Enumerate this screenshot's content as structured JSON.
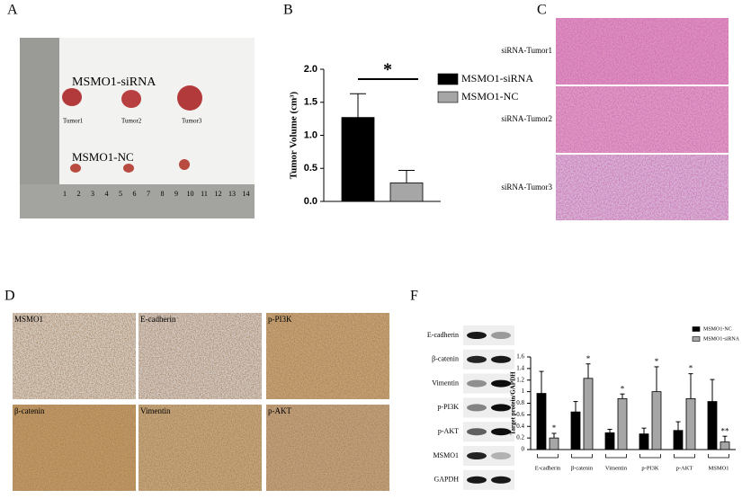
{
  "panels": {
    "labels": [
      "A",
      "B",
      "C",
      "D",
      "F"
    ]
  },
  "photo_a": {
    "group_labels": [
      "MSMO1-siRNA",
      "MSMO1-NC"
    ],
    "tumor_labels": [
      "Tumor1",
      "Tumor2",
      "Tumor3"
    ],
    "ruler": [
      "1",
      "2",
      "3",
      "4",
      "5",
      "6",
      "7",
      "8",
      "9",
      "10",
      "11",
      "12",
      "13",
      "14"
    ]
  },
  "histology_c": {
    "labels": [
      "siRNA-Tumor1",
      "siRNA-Tumor2",
      "siRNA-Tumor3"
    ]
  },
  "ihc_d": {
    "labels": [
      "MSMO1",
      "E-cadherin",
      "p-PI3K",
      "β-catenin",
      "Vimentin",
      "p-AKT"
    ]
  },
  "western_f": {
    "labels": [
      "E-cadherin",
      "β-catenin",
      "Vimentin",
      "p-PI3K",
      "p-AKT",
      "MSMO1",
      "GAPDH"
    ]
  },
  "chart_data": [
    {
      "type": "bar",
      "ylabel": "Tumor Volume (cm³)",
      "categories": [
        null
      ],
      "series": [
        {
          "name": "MSMO1-siRNA",
          "color": "#000000",
          "values": [
            1.27
          ],
          "errors": [
            0.36
          ]
        },
        {
          "name": "MSMO1-NC",
          "color": "#a6a6a6",
          "values": [
            0.28
          ],
          "errors": [
            0.19
          ]
        }
      ],
      "ylim": [
        0,
        2
      ],
      "yticks": [
        {
          "value": 0,
          "label": "0.0"
        },
        0.5,
        {
          "value": 1,
          "label": "1.0"
        },
        1.5,
        {
          "value": 2,
          "label": "2.0"
        }
      ],
      "annotation": "*"
    },
    {
      "type": "bar",
      "ylabel": "Target protein/GAPDH",
      "categories": [
        "E-cadherin",
        "β-catenin",
        "Vimentin",
        "p-PI3K",
        "p-AKT",
        "MSMO1"
      ],
      "series": [
        {
          "name": "MSMO1-NC",
          "color": "#000000",
          "values": [
            0.97,
            0.65,
            0.29,
            0.27,
            0.33,
            0.83
          ],
          "errors": [
            0.38,
            0.18,
            0.06,
            0.1,
            0.15,
            0.38
          ]
        },
        {
          "name": "MSMO1-siRNA",
          "color": "#a6a6a6",
          "values": [
            0.2,
            1.23,
            0.88,
            1.0,
            0.88,
            0.13
          ],
          "errors": [
            0.08,
            0.25,
            0.08,
            0.43,
            0.43,
            0.1
          ]
        }
      ],
      "ylim": [
        0,
        1.6
      ],
      "yticks": [
        0,
        0.2,
        0.4,
        0.6,
        0.8,
        1,
        1.2,
        1.4,
        1.6
      ],
      "annotations": [
        "*",
        "*",
        "*",
        "*",
        "*",
        "**"
      ]
    }
  ]
}
